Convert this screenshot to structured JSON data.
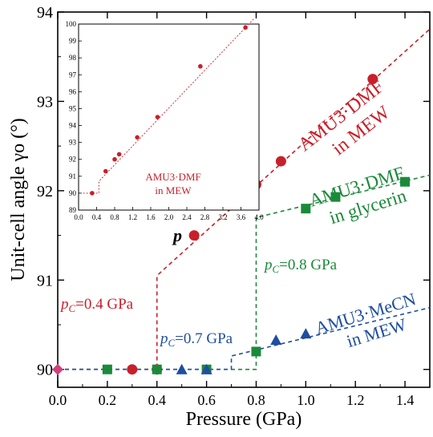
{
  "chart_data": {
    "type": "scatter",
    "main": {
      "xlabel": "Pressure (GPa)",
      "ylabel": "Unit-cell angle γo (°)",
      "xlim": [
        0,
        1.5
      ],
      "ylim": [
        89.8,
        94
      ],
      "xticks": [
        "0.0",
        "0.2",
        "0.4",
        "0.6",
        "0.8",
        "1.0",
        "1.2",
        "1.4"
      ],
      "yticks": [
        "90",
        "91",
        "92",
        "93",
        "94"
      ],
      "series": [
        {
          "name": "AMU3·DMF in MEW",
          "color": "#c8202a",
          "marker": "circle",
          "x": [
            0.3,
            0.4,
            0.55,
            0.8,
            0.9,
            1.27
          ],
          "y": [
            90,
            90,
            91.5,
            92.07,
            92.33,
            93.25
          ]
        },
        {
          "name": "AMU3·DMF in glycerin",
          "color": "#1a8a3a",
          "marker": "square",
          "x": [
            0.2,
            0.4,
            0.6,
            0.8,
            1.0,
            1.12,
            1.4
          ],
          "y": [
            90,
            90,
            90,
            90.2,
            91.8,
            91.93,
            92.1
          ]
        },
        {
          "name": "AMU3·MeCN in MEW",
          "color": "#1f4ea0",
          "marker": "triangle",
          "x": [
            0.5,
            0.6,
            0.88,
            1.0
          ],
          "y": [
            90,
            90,
            90.33,
            90.4
          ]
        },
        {
          "name": "",
          "color": "#d0407a",
          "marker": "diamond",
          "x": [
            0.0
          ],
          "y": [
            90
          ]
        }
      ],
      "annotations": {
        "dmf_mew_line1": "AMU3·DMF",
        "dmf_mew_line2": "in MEW",
        "dmf_gly_line1": "AMU3·DMF",
        "dmf_gly_line2": "in glycerin",
        "mecn_line1": "AMU3·MeCN",
        "mecn_line2": "in MEW",
        "pc_red": "=0.4 GPa",
        "pc_green": "=0.8 GPa",
        "pc_blue": "=0.7 GPa",
        "p_label": "p",
        "pc_sym": "p",
        "pc_sub": "C"
      }
    },
    "inset": {
      "xlim": [
        0,
        4.0
      ],
      "ylim": [
        89,
        100
      ],
      "xticks": [
        "0.0",
        "0.4",
        "0.8",
        "1.2",
        "1.6",
        "2.0",
        "2.4",
        "2.8",
        "3.2",
        "3.6",
        "4.0"
      ],
      "yticks": [
        "89",
        "90",
        "91",
        "92",
        "93",
        "94",
        "95",
        "96",
        "97",
        "98",
        "99",
        "100"
      ],
      "label_line1": "AMU3·DMF",
      "label_line2": "in MEW",
      "series": [
        {
          "name": "",
          "color": "#c8202a",
          "x": [
            0.3,
            0.6,
            0.8,
            0.9,
            1.3,
            1.75,
            2.7,
            3.7
          ],
          "y": [
            90,
            91.3,
            92.0,
            92.3,
            93.3,
            94.5,
            97.5,
            99.8
          ]
        }
      ]
    }
  }
}
